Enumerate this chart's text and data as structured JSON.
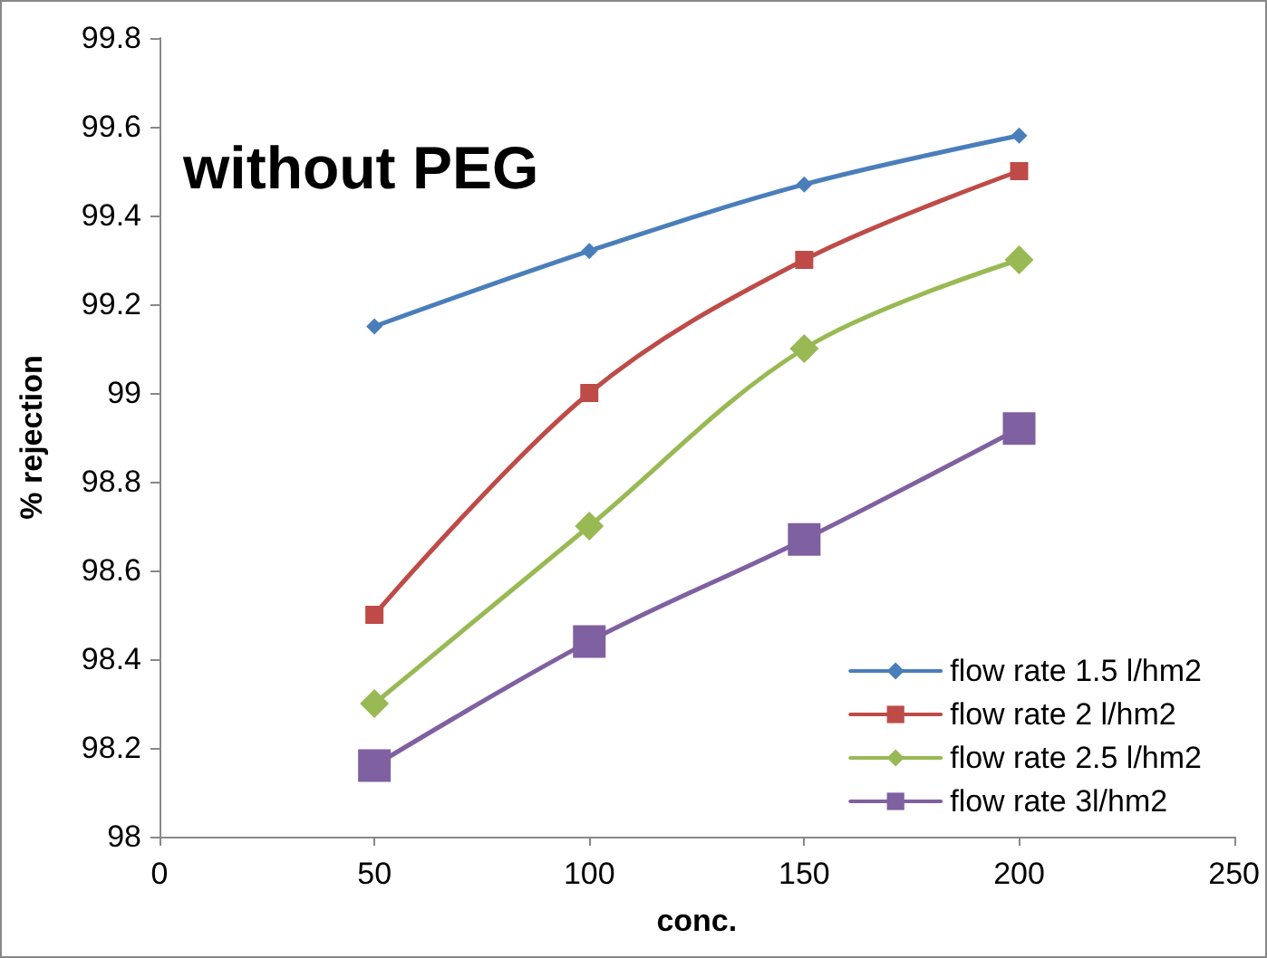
{
  "chart_data": {
    "type": "line",
    "title": "without PEG",
    "xlabel": "conc.",
    "ylabel": "% rejection",
    "x": [
      50,
      100,
      150,
      200
    ],
    "series": [
      {
        "name": "flow rate 1.5 l/hm2",
        "color": "#4a7ebb",
        "marker": "diamond",
        "values": [
          99.15,
          99.32,
          99.47,
          99.58
        ]
      },
      {
        "name": "flow rate 2 l/hm2",
        "color": "#be4b48",
        "marker": "square",
        "values": [
          98.5,
          99.0,
          99.3,
          99.5
        ]
      },
      {
        "name": "flow rate 2.5 l/hm2",
        "color": "#98b954",
        "marker": "diamond",
        "values": [
          98.3,
          98.7,
          99.1,
          99.3
        ]
      },
      {
        "name": "flow rate 3l/hm2",
        "color": "#7f60a0",
        "marker": "square",
        "values": [
          98.16,
          98.44,
          98.67,
          98.92
        ]
      }
    ],
    "xlim": [
      0,
      250
    ],
    "xticks": [
      0,
      50,
      100,
      150,
      200,
      250
    ],
    "ylim": [
      98,
      99.8
    ],
    "yticks": [
      98,
      98.2,
      98.4,
      98.6,
      98.8,
      99,
      99.2,
      99.4,
      99.6,
      99.8
    ],
    "grid": false,
    "legend": "bottom right"
  }
}
